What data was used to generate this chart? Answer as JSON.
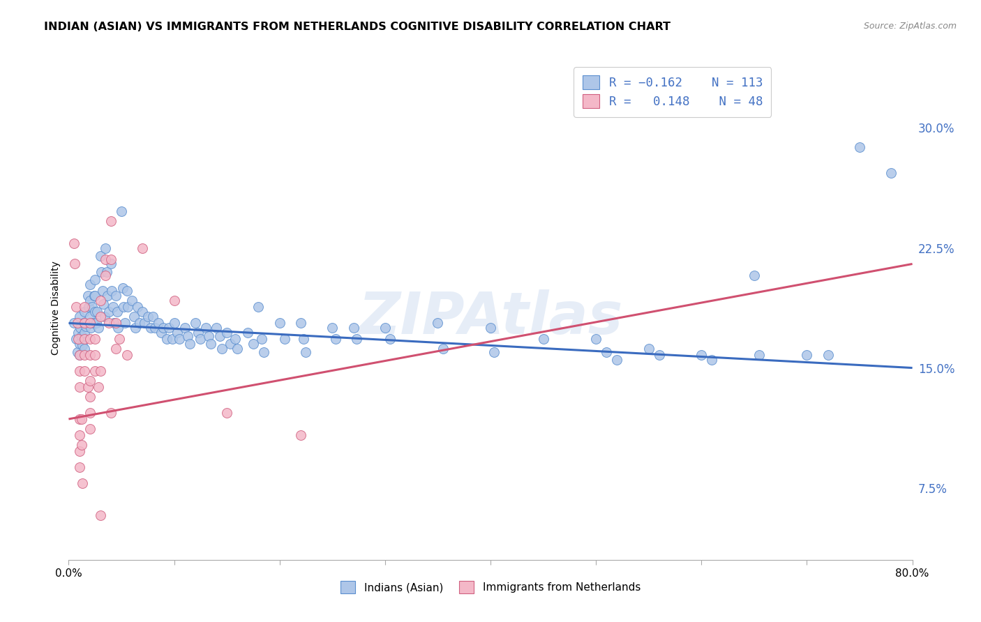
{
  "title": "INDIAN (ASIAN) VS IMMIGRANTS FROM NETHERLANDS COGNITIVE DISABILITY CORRELATION CHART",
  "source": "Source: ZipAtlas.com",
  "ylabel": "Cognitive Disability",
  "ytick_labels": [
    "7.5%",
    "15.0%",
    "22.5%",
    "30.0%"
  ],
  "ytick_values": [
    0.075,
    0.15,
    0.225,
    0.3
  ],
  "xlim": [
    0.0,
    0.8
  ],
  "ylim": [
    0.03,
    0.345
  ],
  "legend_label_blue": "Indians (Asian)",
  "legend_label_pink": "Immigrants from Netherlands",
  "blue_color": "#aec6e8",
  "pink_color": "#f4b8c8",
  "blue_edge_color": "#5b8fcf",
  "pink_edge_color": "#d06080",
  "blue_line_color": "#3a6bbf",
  "pink_line_color": "#d05070",
  "blue_regression": {
    "x_start": 0.0,
    "y_start": 0.178,
    "x_end": 0.8,
    "y_end": 0.15
  },
  "pink_regression": {
    "x_start": 0.0,
    "y_start": 0.118,
    "x_end": 0.8,
    "y_end": 0.215
  },
  "blue_scatter": [
    [
      0.005,
      0.178
    ],
    [
      0.007,
      0.168
    ],
    [
      0.008,
      0.16
    ],
    [
      0.009,
      0.172
    ],
    [
      0.01,
      0.182
    ],
    [
      0.01,
      0.165
    ],
    [
      0.01,
      0.158
    ],
    [
      0.011,
      0.175
    ],
    [
      0.012,
      0.17
    ],
    [
      0.013,
      0.164
    ],
    [
      0.014,
      0.178
    ],
    [
      0.015,
      0.185
    ],
    [
      0.015,
      0.172
    ],
    [
      0.015,
      0.162
    ],
    [
      0.016,
      0.176
    ],
    [
      0.018,
      0.195
    ],
    [
      0.019,
      0.188
    ],
    [
      0.02,
      0.202
    ],
    [
      0.02,
      0.192
    ],
    [
      0.02,
      0.182
    ],
    [
      0.021,
      0.175
    ],
    [
      0.022,
      0.188
    ],
    [
      0.023,
      0.178
    ],
    [
      0.024,
      0.195
    ],
    [
      0.025,
      0.205
    ],
    [
      0.025,
      0.195
    ],
    [
      0.025,
      0.185
    ],
    [
      0.026,
      0.178
    ],
    [
      0.027,
      0.185
    ],
    [
      0.028,
      0.175
    ],
    [
      0.03,
      0.22
    ],
    [
      0.031,
      0.21
    ],
    [
      0.032,
      0.198
    ],
    [
      0.033,
      0.19
    ],
    [
      0.034,
      0.182
    ],
    [
      0.035,
      0.225
    ],
    [
      0.036,
      0.21
    ],
    [
      0.037,
      0.195
    ],
    [
      0.038,
      0.185
    ],
    [
      0.04,
      0.215
    ],
    [
      0.041,
      0.198
    ],
    [
      0.042,
      0.188
    ],
    [
      0.043,
      0.178
    ],
    [
      0.045,
      0.195
    ],
    [
      0.046,
      0.185
    ],
    [
      0.047,
      0.175
    ],
    [
      0.05,
      0.248
    ],
    [
      0.051,
      0.2
    ],
    [
      0.052,
      0.188
    ],
    [
      0.053,
      0.178
    ],
    [
      0.055,
      0.198
    ],
    [
      0.056,
      0.188
    ],
    [
      0.06,
      0.192
    ],
    [
      0.062,
      0.182
    ],
    [
      0.063,
      0.175
    ],
    [
      0.065,
      0.188
    ],
    [
      0.067,
      0.178
    ],
    [
      0.07,
      0.185
    ],
    [
      0.072,
      0.178
    ],
    [
      0.075,
      0.182
    ],
    [
      0.078,
      0.175
    ],
    [
      0.08,
      0.182
    ],
    [
      0.082,
      0.175
    ],
    [
      0.085,
      0.178
    ],
    [
      0.088,
      0.172
    ],
    [
      0.09,
      0.175
    ],
    [
      0.093,
      0.168
    ],
    [
      0.095,
      0.175
    ],
    [
      0.098,
      0.168
    ],
    [
      0.1,
      0.178
    ],
    [
      0.103,
      0.172
    ],
    [
      0.105,
      0.168
    ],
    [
      0.11,
      0.175
    ],
    [
      0.113,
      0.17
    ],
    [
      0.115,
      0.165
    ],
    [
      0.12,
      0.178
    ],
    [
      0.123,
      0.172
    ],
    [
      0.125,
      0.168
    ],
    [
      0.13,
      0.175
    ],
    [
      0.133,
      0.17
    ],
    [
      0.135,
      0.165
    ],
    [
      0.14,
      0.175
    ],
    [
      0.143,
      0.17
    ],
    [
      0.145,
      0.162
    ],
    [
      0.15,
      0.172
    ],
    [
      0.153,
      0.165
    ],
    [
      0.158,
      0.168
    ],
    [
      0.16,
      0.162
    ],
    [
      0.17,
      0.172
    ],
    [
      0.175,
      0.165
    ],
    [
      0.18,
      0.188
    ],
    [
      0.183,
      0.168
    ],
    [
      0.185,
      0.16
    ],
    [
      0.2,
      0.178
    ],
    [
      0.205,
      0.168
    ],
    [
      0.22,
      0.178
    ],
    [
      0.223,
      0.168
    ],
    [
      0.225,
      0.16
    ],
    [
      0.25,
      0.175
    ],
    [
      0.253,
      0.168
    ],
    [
      0.27,
      0.175
    ],
    [
      0.273,
      0.168
    ],
    [
      0.3,
      0.175
    ],
    [
      0.305,
      0.168
    ],
    [
      0.35,
      0.178
    ],
    [
      0.355,
      0.162
    ],
    [
      0.4,
      0.175
    ],
    [
      0.403,
      0.16
    ],
    [
      0.45,
      0.168
    ],
    [
      0.5,
      0.168
    ],
    [
      0.51,
      0.16
    ],
    [
      0.52,
      0.155
    ],
    [
      0.55,
      0.162
    ],
    [
      0.56,
      0.158
    ],
    [
      0.6,
      0.158
    ],
    [
      0.61,
      0.155
    ],
    [
      0.65,
      0.208
    ],
    [
      0.655,
      0.158
    ],
    [
      0.7,
      0.158
    ],
    [
      0.72,
      0.158
    ],
    [
      0.75,
      0.288
    ],
    [
      0.78,
      0.272
    ]
  ],
  "pink_scatter": [
    [
      0.005,
      0.228
    ],
    [
      0.006,
      0.215
    ],
    [
      0.007,
      0.188
    ],
    [
      0.008,
      0.178
    ],
    [
      0.009,
      0.168
    ],
    [
      0.01,
      0.158
    ],
    [
      0.01,
      0.148
    ],
    [
      0.01,
      0.138
    ],
    [
      0.01,
      0.118
    ],
    [
      0.01,
      0.108
    ],
    [
      0.01,
      0.098
    ],
    [
      0.01,
      0.088
    ],
    [
      0.012,
      0.118
    ],
    [
      0.012,
      0.102
    ],
    [
      0.013,
      0.078
    ],
    [
      0.015,
      0.188
    ],
    [
      0.015,
      0.178
    ],
    [
      0.015,
      0.168
    ],
    [
      0.015,
      0.158
    ],
    [
      0.015,
      0.148
    ],
    [
      0.018,
      0.138
    ],
    [
      0.02,
      0.178
    ],
    [
      0.02,
      0.168
    ],
    [
      0.02,
      0.158
    ],
    [
      0.02,
      0.142
    ],
    [
      0.02,
      0.132
    ],
    [
      0.02,
      0.122
    ],
    [
      0.02,
      0.112
    ],
    [
      0.025,
      0.168
    ],
    [
      0.025,
      0.158
    ],
    [
      0.025,
      0.148
    ],
    [
      0.028,
      0.138
    ],
    [
      0.03,
      0.192
    ],
    [
      0.03,
      0.182
    ],
    [
      0.03,
      0.148
    ],
    [
      0.03,
      0.058
    ],
    [
      0.035,
      0.218
    ],
    [
      0.035,
      0.208
    ],
    [
      0.038,
      0.178
    ],
    [
      0.04,
      0.242
    ],
    [
      0.04,
      0.218
    ],
    [
      0.04,
      0.122
    ],
    [
      0.045,
      0.178
    ],
    [
      0.045,
      0.162
    ],
    [
      0.048,
      0.168
    ],
    [
      0.055,
      0.158
    ],
    [
      0.07,
      0.225
    ],
    [
      0.1,
      0.192
    ],
    [
      0.15,
      0.122
    ],
    [
      0.22,
      0.108
    ]
  ],
  "watermark": "ZIPAtlas",
  "grid_color": "#d8d8d8",
  "title_fontsize": 11.5,
  "axis_label_fontsize": 10,
  "tick_color": "#4472c4",
  "legend_text_color": "#4472c4"
}
